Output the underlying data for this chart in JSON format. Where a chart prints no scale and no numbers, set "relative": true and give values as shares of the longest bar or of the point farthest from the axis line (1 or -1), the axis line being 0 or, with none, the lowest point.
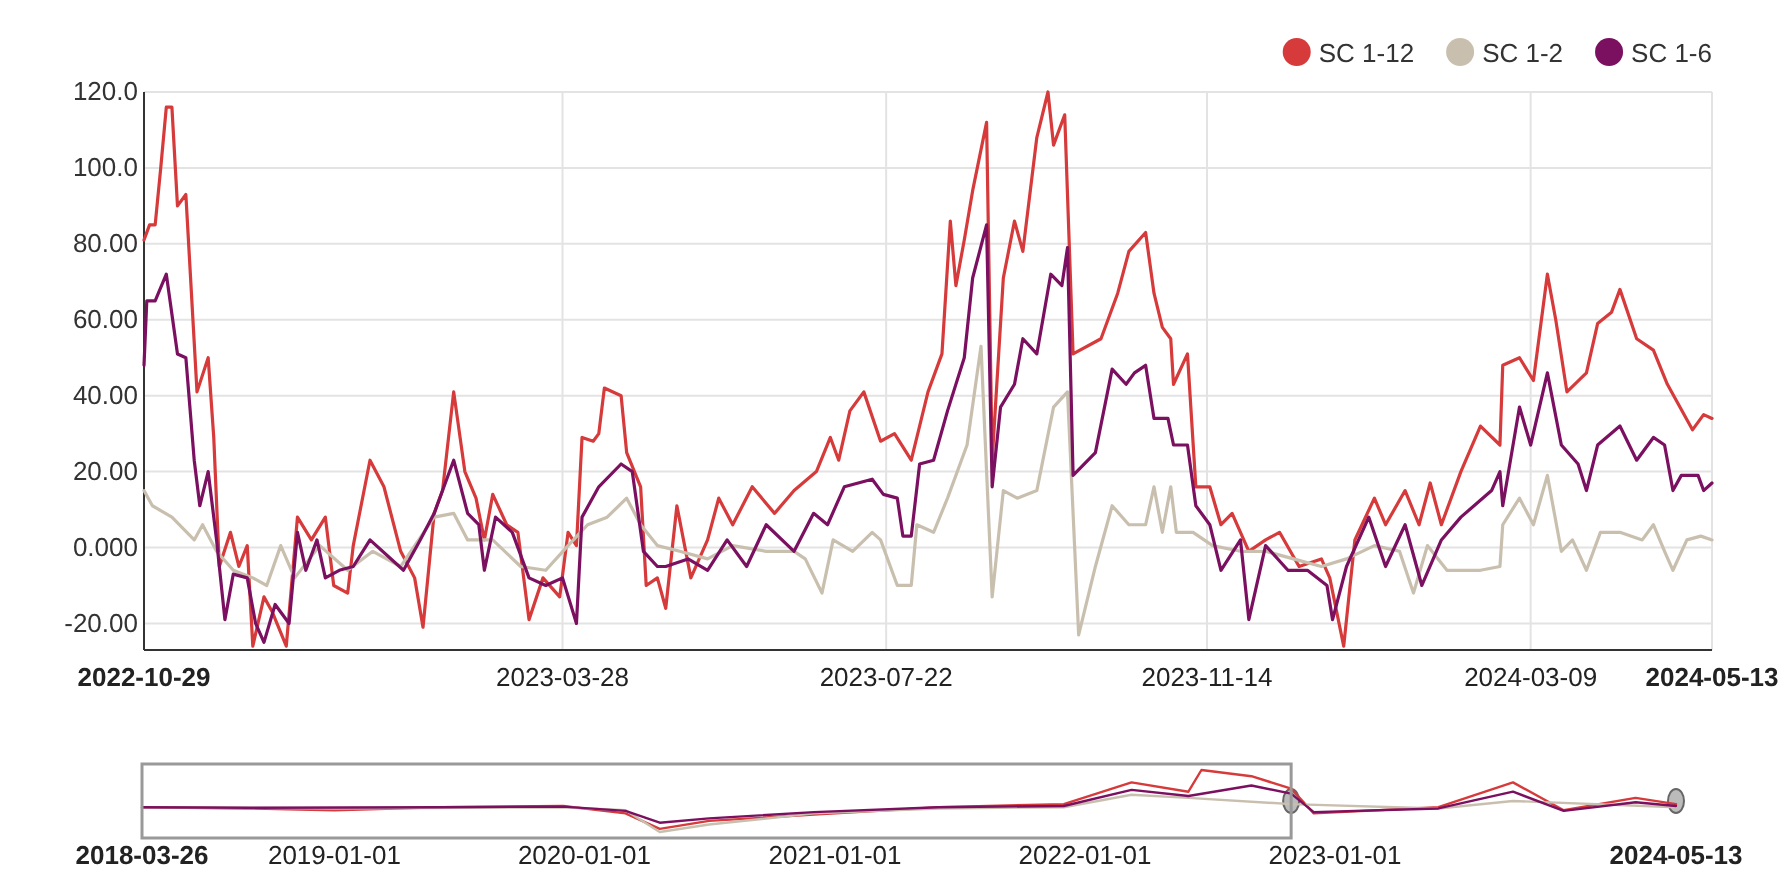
{
  "chart_data": [
    {
      "type": "line",
      "xlim": [
        "2022-10-29",
        "2024-05-13"
      ],
      "ylim": [
        -27,
        120
      ],
      "xticks": [
        "2022-10-29",
        "2023-03-28",
        "2023-07-22",
        "2023-11-14",
        "2024-03-09",
        "2024-05-13"
      ],
      "yticks": [
        {
          "value": -20,
          "label": "-20.00"
        },
        {
          "value": 0,
          "label": "0.000"
        },
        {
          "value": 20,
          "label": "20.00"
        },
        {
          "value": 40,
          "label": "40.00"
        },
        {
          "value": 60,
          "label": "60.00"
        },
        {
          "value": 80,
          "label": "80.00"
        },
        {
          "value": 100,
          "label": "100.0"
        },
        {
          "value": 120,
          "label": "120.0"
        }
      ],
      "grid": true,
      "legend": "top right",
      "marker": "none",
      "line_style": "solid",
      "series": [
        {
          "name": "SC 1-12",
          "color": "#d63a3a",
          "x": [
            "2022-10-29",
            "2022-10-31",
            "2022-11-02",
            "2022-11-04",
            "2022-11-06",
            "2022-11-08",
            "2022-11-10",
            "2022-11-13",
            "2022-11-17",
            "2022-11-21",
            "2022-11-23",
            "2022-11-25",
            "2022-11-29",
            "2022-12-02",
            "2022-12-05",
            "2022-12-07",
            "2022-12-11",
            "2022-12-14",
            "2022-12-19",
            "2022-12-23",
            "2022-12-28",
            "2023-01-02",
            "2023-01-05",
            "2023-01-10",
            "2023-01-12",
            "2023-01-18",
            "2023-01-23",
            "2023-01-29",
            "2023-02-03",
            "2023-02-06",
            "2023-02-10",
            "2023-02-13",
            "2023-02-17",
            "2023-02-21",
            "2023-02-25",
            "2023-02-28",
            "2023-03-03",
            "2023-03-08",
            "2023-03-12",
            "2023-03-16",
            "2023-03-21",
            "2023-03-27",
            "2023-03-30",
            "2023-04-02",
            "2023-04-04",
            "2023-04-08",
            "2023-04-10",
            "2023-04-12",
            "2023-04-18",
            "2023-04-20",
            "2023-04-25",
            "2023-04-27",
            "2023-05-01",
            "2023-05-04",
            "2023-05-08",
            "2023-05-13",
            "2023-05-19",
            "2023-05-23",
            "2023-05-28",
            "2023-06-04",
            "2023-06-12",
            "2023-06-19",
            "2023-06-27",
            "2023-07-02",
            "2023-07-05",
            "2023-07-09",
            "2023-07-14",
            "2023-07-20",
            "2023-07-25",
            "2023-07-31",
            "2023-08-06",
            "2023-08-11",
            "2023-08-14",
            "2023-08-16",
            "2023-08-19",
            "2023-08-22",
            "2023-08-27",
            "2023-08-29",
            "2023-09-02",
            "2023-09-06",
            "2023-09-09",
            "2023-09-14",
            "2023-09-18",
            "2023-09-20",
            "2023-09-24",
            "2023-09-27",
            "2023-10-07",
            "2023-10-13",
            "2023-10-17",
            "2023-10-23",
            "2023-10-26",
            "2023-10-29",
            "2023-11-01",
            "2023-11-02",
            "2023-11-07",
            "2023-11-10",
            "2023-11-15",
            "2023-11-19",
            "2023-11-23",
            "2023-11-29",
            "2023-12-05",
            "2023-12-10",
            "2023-12-17",
            "2023-12-25",
            "2023-12-28",
            "2024-01-02",
            "2024-01-06",
            "2024-01-13",
            "2024-01-17",
            "2024-01-24",
            "2024-01-29",
            "2024-02-02",
            "2024-02-06",
            "2024-02-13",
            "2024-02-20",
            "2024-02-27",
            "2024-02-28",
            "2024-03-05",
            "2024-03-10",
            "2024-03-15",
            "2024-03-18",
            "2024-03-22",
            "2024-03-29",
            "2024-04-02",
            "2024-04-07",
            "2024-04-10",
            "2024-04-16",
            "2024-04-22",
            "2024-04-27",
            "2024-05-06",
            "2024-05-10",
            "2024-05-13"
          ],
          "values": [
            81,
            85,
            85,
            100,
            116,
            116,
            90,
            93,
            41,
            50,
            29,
            -5,
            4,
            -5,
            0.5,
            -26,
            -13,
            -17,
            -26,
            8,
            2,
            8,
            -10,
            -12,
            0.5,
            23,
            16,
            -1,
            -8,
            -21,
            9,
            15,
            41,
            20,
            13,
            2,
            14,
            6,
            4,
            -19,
            -8,
            -13,
            4,
            0.5,
            29,
            28,
            30,
            42,
            40,
            25,
            16,
            -10,
            -8,
            -16,
            11,
            -8,
            2,
            13,
            6,
            16,
            9,
            15,
            20,
            29,
            23,
            36,
            41,
            28,
            30,
            23,
            41,
            51,
            86,
            69,
            81,
            94,
            112,
            23,
            71,
            86,
            78,
            108,
            120,
            106,
            114,
            51,
            55,
            67,
            78,
            83,
            67,
            58,
            55,
            43,
            51,
            16,
            16,
            6,
            9,
            -1,
            2,
            4,
            -5,
            -3,
            -8,
            -26,
            2,
            13,
            6,
            15,
            6,
            17,
            6,
            20,
            32,
            27,
            48,
            50,
            44,
            72,
            60,
            41,
            46,
            59,
            62,
            68,
            55,
            52,
            43,
            31,
            35,
            34
          ]
        },
        {
          "name": "SC 1-2",
          "color": "#c9bfae",
          "x": [
            "2022-10-29",
            "2022-11-01",
            "2022-11-08",
            "2022-11-16",
            "2022-11-19",
            "2022-11-24",
            "2022-11-30",
            "2022-12-07",
            "2022-12-12",
            "2022-12-17",
            "2022-12-22",
            "2022-12-31",
            "2023-01-10",
            "2023-01-19",
            "2023-01-29",
            "2023-02-10",
            "2023-02-17",
            "2023-02-22",
            "2023-03-03",
            "2023-03-13",
            "2023-03-22",
            "2023-03-30",
            "2023-04-06",
            "2023-04-13",
            "2023-04-20",
            "2023-04-25",
            "2023-05-01",
            "2023-05-09",
            "2023-05-19",
            "2023-05-28",
            "2023-06-09",
            "2023-06-19",
            "2023-06-23",
            "2023-06-29",
            "2023-07-03",
            "2023-07-10",
            "2023-07-17",
            "2023-07-20",
            "2023-07-26",
            "2023-07-31",
            "2023-08-02",
            "2023-08-08",
            "2023-08-13",
            "2023-08-20",
            "2023-08-25",
            "2023-08-29",
            "2023-09-02",
            "2023-09-07",
            "2023-09-14",
            "2023-09-20",
            "2023-09-25",
            "2023-09-29",
            "2023-10-05",
            "2023-10-11",
            "2023-10-17",
            "2023-10-23",
            "2023-10-26",
            "2023-10-29",
            "2023-11-01",
            "2023-11-03",
            "2023-11-09",
            "2023-11-16",
            "2023-11-26",
            "2023-12-05",
            "2023-12-15",
            "2023-12-25",
            "2024-01-03",
            "2024-01-13",
            "2024-01-22",
            "2024-01-27",
            "2024-02-01",
            "2024-02-08",
            "2024-02-20",
            "2024-02-27",
            "2024-02-28",
            "2024-03-05",
            "2024-03-10",
            "2024-03-15",
            "2024-03-20",
            "2024-03-24",
            "2024-03-29",
            "2024-04-03",
            "2024-04-10",
            "2024-04-18",
            "2024-04-22",
            "2024-04-26",
            "2024-04-29",
            "2024-05-04",
            "2024-05-09",
            "2024-05-13"
          ],
          "values": [
            15,
            11,
            8,
            2,
            6,
            -1,
            -6,
            -8,
            -10,
            0.5,
            -8,
            0.5,
            -6,
            -1,
            -5,
            8,
            9,
            2,
            2,
            -5,
            -6,
            0.5,
            6,
            8,
            13,
            6,
            0.5,
            -1,
            -3,
            0.5,
            -1,
            -1,
            -3,
            -12,
            2,
            -1,
            4,
            2,
            -10,
            -10,
            6,
            4,
            13,
            27,
            53,
            -13,
            15,
            13,
            15,
            37,
            41,
            -23,
            -5,
            11,
            6,
            6,
            16,
            4,
            16,
            4,
            4,
            0.5,
            -1,
            -1,
            -3,
            -5,
            -3,
            0.5,
            -1,
            -12,
            0.5,
            -6,
            -6,
            -5,
            6,
            13,
            6,
            19,
            -1,
            2,
            -6,
            4,
            4,
            2,
            6,
            -1,
            -6,
            2,
            3,
            2
          ]
        },
        {
          "name": "SC 1-6",
          "color": "#7b1060",
          "x": [
            "2022-10-29",
            "2022-10-30",
            "2022-11-02",
            "2022-11-06",
            "2022-11-10",
            "2022-11-13",
            "2022-11-16",
            "2022-11-18",
            "2022-11-21",
            "2022-11-24",
            "2022-11-27",
            "2022-11-30",
            "2022-12-05",
            "2022-12-08",
            "2022-12-11",
            "2022-12-15",
            "2022-12-20",
            "2022-12-23",
            "2022-12-26",
            "2022-12-30",
            "2023-01-02",
            "2023-01-07",
            "2023-01-12",
            "2023-01-18",
            "2023-01-30",
            "2023-02-05",
            "2023-02-10",
            "2023-02-17",
            "2023-02-22",
            "2023-02-26",
            "2023-02-28",
            "2023-03-04",
            "2023-03-10",
            "2023-03-16",
            "2023-03-22",
            "2023-03-28",
            "2023-04-02",
            "2023-04-04",
            "2023-04-10",
            "2023-04-18",
            "2023-04-22",
            "2023-04-26",
            "2023-05-01",
            "2023-05-04",
            "2023-05-12",
            "2023-05-19",
            "2023-05-26",
            "2023-06-02",
            "2023-06-09",
            "2023-06-19",
            "2023-06-26",
            "2023-07-01",
            "2023-07-07",
            "2023-07-17",
            "2023-07-21",
            "2023-07-26",
            "2023-07-28",
            "2023-07-31",
            "2023-08-03",
            "2023-08-08",
            "2023-08-13",
            "2023-08-19",
            "2023-08-22",
            "2023-08-27",
            "2023-08-29",
            "2023-09-01",
            "2023-09-06",
            "2023-09-09",
            "2023-09-14",
            "2023-09-19",
            "2023-09-23",
            "2023-09-25",
            "2023-09-27",
            "2023-10-05",
            "2023-10-11",
            "2023-10-16",
            "2023-10-19",
            "2023-10-23",
            "2023-10-26",
            "2023-10-31",
            "2023-11-02",
            "2023-11-07",
            "2023-11-10",
            "2023-11-15",
            "2023-11-19",
            "2023-11-26",
            "2023-11-29",
            "2023-12-05",
            "2023-12-13",
            "2023-12-20",
            "2023-12-27",
            "2023-12-29",
            "2024-01-03",
            "2024-01-11",
            "2024-01-17",
            "2024-01-24",
            "2024-01-30",
            "2024-02-06",
            "2024-02-13",
            "2024-02-24",
            "2024-02-27",
            "2024-02-28",
            "2024-03-05",
            "2024-03-09",
            "2024-03-15",
            "2024-03-20",
            "2024-03-26",
            "2024-03-29",
            "2024-04-02",
            "2024-04-10",
            "2024-04-16",
            "2024-04-22",
            "2024-04-26",
            "2024-04-29",
            "2024-05-02",
            "2024-05-08",
            "2024-05-10",
            "2024-05-13"
          ],
          "values": [
            48,
            65,
            65,
            72,
            51,
            50,
            23,
            11,
            20,
            2,
            -19,
            -7,
            -8,
            -20,
            -25,
            -15,
            -20,
            4,
            -6,
            2,
            -8,
            -6,
            -5,
            2,
            -6,
            2,
            9,
            23,
            9,
            6,
            -6,
            8,
            4,
            -8,
            -10,
            -8,
            -20,
            8,
            16,
            22,
            20,
            -1,
            -5,
            -5,
            -3,
            -6,
            2,
            -5,
            6,
            -1,
            9,
            6,
            16,
            18,
            14,
            13,
            3,
            3,
            22,
            23,
            36,
            50,
            71,
            85,
            16,
            37,
            43,
            55,
            51,
            72,
            69,
            79,
            19,
            25,
            47,
            43,
            46,
            48,
            34,
            34,
            27,
            27,
            11,
            6,
            -6,
            2,
            -19,
            0.5,
            -6,
            -6,
            -10,
            -19,
            -5,
            8,
            -5,
            6,
            -10,
            2,
            8,
            15,
            20,
            11,
            37,
            27,
            46,
            27,
            22,
            15,
            27,
            32,
            23,
            29,
            27,
            15,
            19,
            19,
            15,
            17
          ]
        }
      ]
    },
    {
      "type": "line",
      "relative": true,
      "xlim": [
        "2018-03-26",
        "2024-05-13"
      ],
      "xticks": [
        "2018-03-26",
        "2019-01-01",
        "2020-01-01",
        "2021-01-01",
        "2022-01-01",
        "2023-01-01",
        "2024-05-13"
      ],
      "series": [
        {
          "color": "#d63a3a",
          "x": [
            "2018-03-26",
            "2018-09-01",
            "2019-01-01",
            "2019-06-01",
            "2019-12-01",
            "2020-03-01",
            "2020-04-20",
            "2020-07-01",
            "2020-12-01",
            "2021-06-01",
            "2021-12-01",
            "2022-03-10",
            "2022-06-01",
            "2022-06-20",
            "2022-09-01",
            "2022-10-29",
            "2022-12-01",
            "2023-06-01",
            "2023-09-18",
            "2023-12-01",
            "2024-03-15",
            "2024-05-13"
          ],
          "values": [
            0.4,
            0.38,
            0.35,
            0.4,
            0.42,
            0.3,
            0.05,
            0.18,
            0.28,
            0.4,
            0.45,
            0.8,
            0.65,
            1,
            0.9,
            0.7,
            0.3,
            0.4,
            0.8,
            0.35,
            0.55,
            0.45
          ]
        },
        {
          "color": "#c9bfae",
          "x": [
            "2018-03-26",
            "2019-01-01",
            "2019-12-01",
            "2020-03-01",
            "2020-04-20",
            "2020-07-01",
            "2020-12-01",
            "2021-06-01",
            "2021-12-01",
            "2022-03-10",
            "2022-06-01",
            "2022-10-29",
            "2023-06-01",
            "2023-09-18",
            "2024-05-13"
          ],
          "values": [
            0.4,
            0.38,
            0.4,
            0.35,
            0,
            0.12,
            0.3,
            0.38,
            0.4,
            0.6,
            0.55,
            0.45,
            0.38,
            0.5,
            0.4
          ]
        },
        {
          "color": "#7b1060",
          "x": [
            "2018-03-26",
            "2018-09-01",
            "2019-06-01",
            "2019-12-01",
            "2020-03-01",
            "2020-04-20",
            "2020-07-01",
            "2020-12-01",
            "2021-06-01",
            "2021-12-01",
            "2022-03-10",
            "2022-06-01",
            "2022-09-01",
            "2022-10-29",
            "2022-12-01",
            "2023-06-01",
            "2023-09-18",
            "2023-12-01",
            "2024-03-15",
            "2024-05-13"
          ],
          "values": [
            0.4,
            0.39,
            0.4,
            0.41,
            0.34,
            0.15,
            0.22,
            0.32,
            0.4,
            0.42,
            0.68,
            0.58,
            0.75,
            0.62,
            0.32,
            0.38,
            0.65,
            0.34,
            0.48,
            0.42
          ]
        }
      ]
    }
  ]
}
